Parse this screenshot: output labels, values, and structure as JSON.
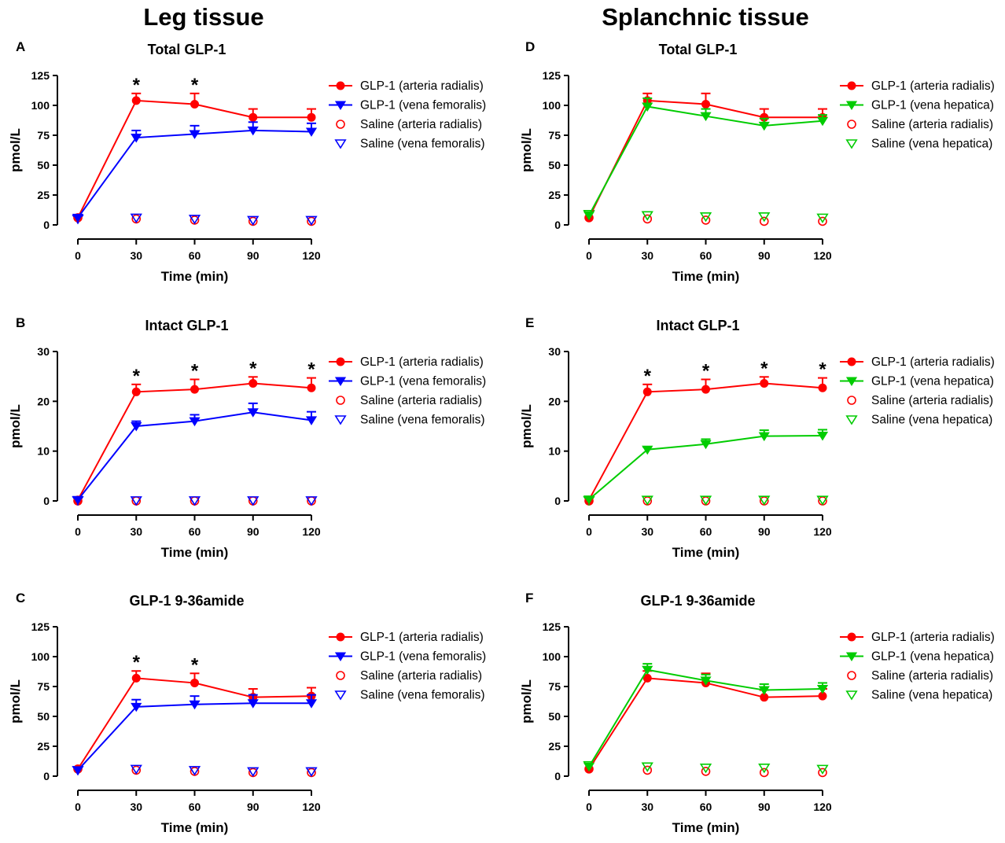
{
  "figure": {
    "left_heading": "Leg tissue",
    "right_heading": "Splanchnic tissue"
  },
  "colors": {
    "artery": "#ff0000",
    "femoral": "#0000ff",
    "hepatic": "#00cc00",
    "axis": "#000000"
  },
  "chart_data": [
    {
      "type": "line",
      "panel_label": "A",
      "title": "Total GLP-1",
      "xlabel": "Time (min)",
      "ylabel": "pmol/L",
      "x": [
        0,
        30,
        60,
        90,
        120
      ],
      "xlim": [
        0,
        120
      ],
      "ylim": [
        0,
        125
      ],
      "yticks": [
        0,
        25,
        50,
        75,
        100,
        125
      ],
      "grid": false,
      "legend_position": "top-right",
      "series": [
        {
          "name": "GLP-1 (arteria radialis)",
          "marker": "circle",
          "filled": true,
          "line": true,
          "color": "artery",
          "values": [
            6,
            104,
            101,
            90,
            90
          ],
          "error": [
            0,
            6,
            9,
            7,
            7
          ]
        },
        {
          "name": "GLP-1 (vena femoralis)",
          "marker": "triangle-down",
          "filled": true,
          "line": true,
          "color": "femoral",
          "values": [
            6,
            73,
            76,
            79,
            78
          ],
          "error": [
            0,
            6,
            7,
            7,
            7
          ]
        },
        {
          "name": "Saline (arteria radialis)",
          "marker": "circle",
          "filled": false,
          "line": false,
          "color": "artery",
          "values": [
            6,
            5,
            4,
            3,
            3
          ],
          "error": [
            0,
            0,
            0,
            0,
            0
          ]
        },
        {
          "name": "Saline (vena femoralis)",
          "marker": "triangle-down",
          "filled": false,
          "line": false,
          "color": "femoral",
          "values": [
            5,
            6,
            5,
            4,
            4
          ],
          "error": [
            0,
            0,
            0,
            0,
            0
          ]
        }
      ],
      "significance": [
        {
          "x": 30,
          "label": "*"
        },
        {
          "x": 60,
          "label": "*"
        }
      ]
    },
    {
      "type": "line",
      "panel_label": "B",
      "title": "Intact GLP-1",
      "xlabel": "Time (min)",
      "ylabel": "pmol/L",
      "x": [
        0,
        30,
        60,
        90,
        120
      ],
      "xlim": [
        0,
        120
      ],
      "ylim": [
        0,
        30
      ],
      "yticks": [
        0,
        10,
        20,
        30
      ],
      "grid": false,
      "legend_position": "top-right",
      "series": [
        {
          "name": "GLP-1 (arteria radialis)",
          "marker": "circle",
          "filled": true,
          "line": true,
          "color": "artery",
          "values": [
            0.2,
            21.9,
            22.4,
            23.6,
            22.7
          ],
          "error": [
            0,
            1.5,
            2,
            1.3,
            2
          ]
        },
        {
          "name": "GLP-1 (vena femoralis)",
          "marker": "triangle-down",
          "filled": true,
          "line": true,
          "color": "femoral",
          "values": [
            0.2,
            15.0,
            16.0,
            17.8,
            16.2
          ],
          "error": [
            0,
            1,
            1.3,
            1.8,
            1.7
          ]
        },
        {
          "name": "Saline (arteria radialis)",
          "marker": "circle",
          "filled": false,
          "line": false,
          "color": "artery",
          "values": [
            0,
            0,
            0,
            0,
            0
          ],
          "error": [
            0,
            0,
            0,
            0,
            0
          ]
        },
        {
          "name": "Saline (vena femoralis)",
          "marker": "triangle-down",
          "filled": false,
          "line": false,
          "color": "femoral",
          "values": [
            0.1,
            0.1,
            0.1,
            0.1,
            0.1
          ],
          "error": [
            0,
            0,
            0,
            0,
            0
          ]
        }
      ],
      "significance": [
        {
          "x": 30,
          "label": "*"
        },
        {
          "x": 60,
          "label": "*"
        },
        {
          "x": 90,
          "label": "*"
        },
        {
          "x": 120,
          "label": "*"
        }
      ]
    },
    {
      "type": "line",
      "panel_label": "C",
      "title": "GLP-1 9-36amide",
      "xlabel": "Time (min)",
      "ylabel": "pmol/L",
      "x": [
        0,
        30,
        60,
        90,
        120
      ],
      "xlim": [
        0,
        120
      ],
      "ylim": [
        0,
        125
      ],
      "yticks": [
        0,
        25,
        50,
        75,
        100,
        125
      ],
      "grid": false,
      "legend_position": "top-right",
      "series": [
        {
          "name": "GLP-1 (arteria radialis)",
          "marker": "circle",
          "filled": true,
          "line": true,
          "color": "artery",
          "values": [
            6,
            82,
            78,
            66,
            67
          ],
          "error": [
            0,
            6,
            8,
            7,
            7
          ]
        },
        {
          "name": "GLP-1 (vena femoralis)",
          "marker": "triangle-down",
          "filled": true,
          "line": true,
          "color": "femoral",
          "values": [
            5,
            58,
            60,
            61,
            61
          ],
          "error": [
            0,
            6,
            7,
            7,
            7
          ]
        },
        {
          "name": "Saline (arteria radialis)",
          "marker": "circle",
          "filled": false,
          "line": false,
          "color": "artery",
          "values": [
            6,
            5,
            4,
            3,
            3
          ],
          "error": [
            0,
            0,
            0,
            0,
            0
          ]
        },
        {
          "name": "Saline (vena femoralis)",
          "marker": "triangle-down",
          "filled": false,
          "line": false,
          "color": "femoral",
          "values": [
            5,
            6,
            5,
            4,
            4
          ],
          "error": [
            0,
            0,
            0,
            0,
            0
          ]
        }
      ],
      "significance": [
        {
          "x": 30,
          "label": "*"
        },
        {
          "x": 60,
          "label": "*"
        }
      ]
    },
    {
      "type": "line",
      "panel_label": "D",
      "title": "Total GLP-1",
      "xlabel": "Time (min)",
      "ylabel": "pmol/L",
      "x": [
        0,
        30,
        60,
        90,
        120
      ],
      "xlim": [
        0,
        120
      ],
      "ylim": [
        0,
        125
      ],
      "yticks": [
        0,
        25,
        50,
        75,
        100,
        125
      ],
      "grid": false,
      "legend_position": "top-right",
      "series": [
        {
          "name": "GLP-1 (arteria radialis)",
          "marker": "circle",
          "filled": true,
          "line": true,
          "color": "artery",
          "values": [
            6,
            104,
            101,
            90,
            90
          ],
          "error": [
            0,
            6,
            9,
            7,
            7
          ]
        },
        {
          "name": "GLP-1 (vena hepatica)",
          "marker": "triangle-down",
          "filled": true,
          "line": true,
          "color": "hepatic",
          "values": [
            8,
            99,
            91,
            83,
            87
          ],
          "error": [
            0,
            7,
            6,
            6,
            5
          ]
        },
        {
          "name": "Saline (arteria radialis)",
          "marker": "circle",
          "filled": false,
          "line": false,
          "color": "artery",
          "values": [
            6,
            5,
            4,
            3,
            3
          ],
          "error": [
            0,
            0,
            0,
            0,
            0
          ]
        },
        {
          "name": "Saline (vena hepatica)",
          "marker": "triangle-down",
          "filled": false,
          "line": false,
          "color": "hepatic",
          "values": [
            9,
            8,
            7,
            7,
            6
          ],
          "error": [
            0,
            0,
            0,
            0,
            0
          ]
        }
      ],
      "significance": []
    },
    {
      "type": "line",
      "panel_label": "E",
      "title": "Intact GLP-1",
      "xlabel": "Time (min)",
      "ylabel": "pmol/L",
      "x": [
        0,
        30,
        60,
        90,
        120
      ],
      "xlim": [
        0,
        120
      ],
      "ylim": [
        0,
        30
      ],
      "yticks": [
        0,
        10,
        20,
        30
      ],
      "grid": false,
      "legend_position": "top-right",
      "series": [
        {
          "name": "GLP-1 (arteria radialis)",
          "marker": "circle",
          "filled": true,
          "line": true,
          "color": "artery",
          "values": [
            0.2,
            21.9,
            22.4,
            23.6,
            22.7
          ],
          "error": [
            0,
            1.5,
            2,
            1.3,
            2
          ]
        },
        {
          "name": "GLP-1 (vena hepatica)",
          "marker": "triangle-down",
          "filled": true,
          "line": true,
          "color": "hepatic",
          "values": [
            0.3,
            10.3,
            11.4,
            13.0,
            13.1
          ],
          "error": [
            0,
            0.5,
            1,
            1.2,
            1.2
          ]
        },
        {
          "name": "Saline (arteria radialis)",
          "marker": "circle",
          "filled": false,
          "line": false,
          "color": "artery",
          "values": [
            0,
            0,
            0,
            0,
            0
          ],
          "error": [
            0,
            0,
            0,
            0,
            0
          ]
        },
        {
          "name": "Saline (vena hepatica)",
          "marker": "triangle-down",
          "filled": false,
          "line": false,
          "color": "hepatic",
          "values": [
            0.1,
            0.2,
            0.2,
            0.2,
            0.2
          ],
          "error": [
            0,
            0,
            0,
            0,
            0
          ]
        }
      ],
      "significance": [
        {
          "x": 30,
          "label": "*"
        },
        {
          "x": 60,
          "label": "*"
        },
        {
          "x": 90,
          "label": "*"
        },
        {
          "x": 120,
          "label": "*"
        }
      ]
    },
    {
      "type": "line",
      "panel_label": "F",
      "title": "GLP-1 9-36amide",
      "xlabel": "Time (min)",
      "ylabel": "pmol/L",
      "x": [
        0,
        30,
        60,
        90,
        120
      ],
      "xlim": [
        0,
        120
      ],
      "ylim": [
        0,
        125
      ],
      "yticks": [
        0,
        25,
        50,
        75,
        100,
        125
      ],
      "grid": false,
      "legend_position": "top-right",
      "series": [
        {
          "name": "GLP-1 (arteria radialis)",
          "marker": "circle",
          "filled": true,
          "line": true,
          "color": "artery",
          "values": [
            6,
            82,
            78,
            66,
            67
          ],
          "error": [
            0,
            6,
            8,
            6,
            6
          ]
        },
        {
          "name": "GLP-1 (vena hepatica)",
          "marker": "triangle-down",
          "filled": true,
          "line": true,
          "color": "hepatic",
          "values": [
            8,
            89,
            80,
            72,
            73
          ],
          "error": [
            0,
            5,
            5,
            5,
            5
          ]
        },
        {
          "name": "Saline (arteria radialis)",
          "marker": "circle",
          "filled": false,
          "line": false,
          "color": "artery",
          "values": [
            6,
            5,
            4,
            3,
            3
          ],
          "error": [
            0,
            0,
            0,
            0,
            0
          ]
        },
        {
          "name": "Saline (vena hepatica)",
          "marker": "triangle-down",
          "filled": false,
          "line": false,
          "color": "hepatic",
          "values": [
            9,
            8,
            7,
            7,
            6
          ],
          "error": [
            0,
            0,
            0,
            0,
            0
          ]
        }
      ],
      "significance": []
    }
  ]
}
